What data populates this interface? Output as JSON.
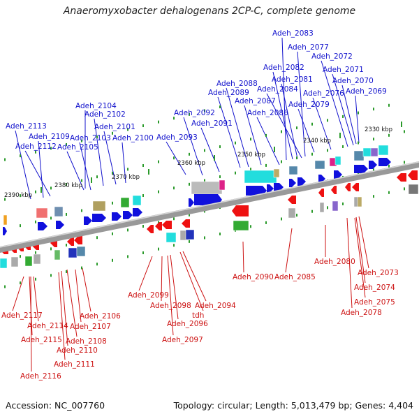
{
  "title": "Anaeromyxobacter dehalogenans 2CP-C, complete genome",
  "footer": {
    "accession": "Accession: NC_007760",
    "summary": "Topology: circular; Length: 5,013,479 bp; Genes: 4,404"
  },
  "colors": {
    "top_label": "#1010cc",
    "bottom_label": "#cc1010",
    "forward_arrow": "#1010dd",
    "reverse_arrow": "#ee1111",
    "backbone": "#999999",
    "tick": "#2a9a2a"
  },
  "scale_ticks": [
    "2390 kbp",
    "2380 kbp",
    "2370 kbp",
    "2360 kbp",
    "2350 kbp",
    "2340 kbp",
    "2330 kbp"
  ],
  "top_labels": [
    "Adeh_2083",
    "Adeh_2077",
    "Adeh_2072",
    "Adeh_2082",
    "Adeh_2071",
    "Adeh_2081",
    "Adeh_2070",
    "Adeh_2088",
    "Adeh_2084",
    "Adeh_2076",
    "Adeh_2069",
    "Adeh_2089",
    "Adeh_2087",
    "Adeh_2079",
    "Adeh_2104",
    "Adeh_2092",
    "Adeh_2086",
    "Adeh_2102",
    "Adeh_2091",
    "Adeh_2113",
    "Adeh_2101",
    "Adeh_2109",
    "Adeh_2103",
    "Adeh_2100",
    "Adeh_2093",
    "Adeh_2112",
    "Adeh_2105"
  ],
  "bottom_labels": [
    "Adeh_2090",
    "Adeh_2085",
    "Adeh_2080",
    "Adeh_2073",
    "Adeh_2074",
    "Adeh_2099",
    "Adeh_2075",
    "Adeh_2098",
    "Adeh_2094",
    "Adeh_2078",
    "tdh",
    "Adeh_2106",
    "Adeh_2117",
    "Adeh_2096",
    "Adeh_2114",
    "Adeh_2107",
    "Adeh_2097",
    "Adeh_2115",
    "Adeh_2108",
    "Adeh_2110",
    "Adeh_2111",
    "Adeh_2116"
  ]
}
